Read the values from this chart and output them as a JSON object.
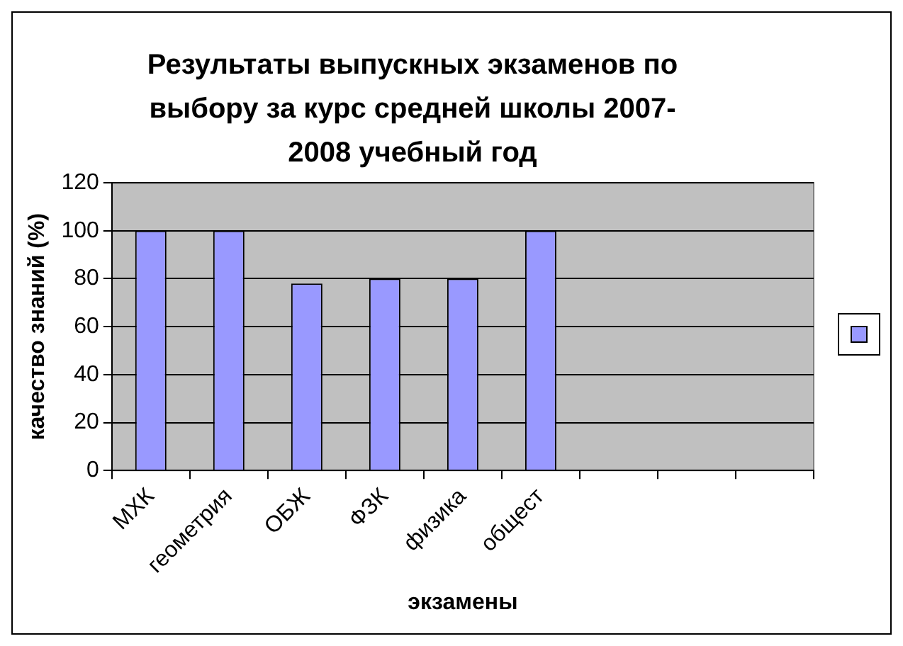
{
  "chart_data": {
    "type": "bar",
    "title": "Результаты выпускных экзаменов по выбору за курс средней школы 2007-2008 учебный год",
    "xlabel": "экзамены",
    "ylabel": "качество знаний (%)",
    "categories": [
      "МХК",
      "геометрия",
      "ОБЖ",
      "ФЗК",
      "физика",
      "общест",
      null,
      null,
      null
    ],
    "series": [
      {
        "color": "#9999ff",
        "values": [
          100,
          100,
          78,
          80,
          80,
          100,
          null,
          null,
          null
        ]
      }
    ],
    "ylim": [
      0,
      120
    ],
    "yticks": [
      0,
      20,
      40,
      60,
      80,
      100,
      120
    ],
    "grid": "y"
  }
}
